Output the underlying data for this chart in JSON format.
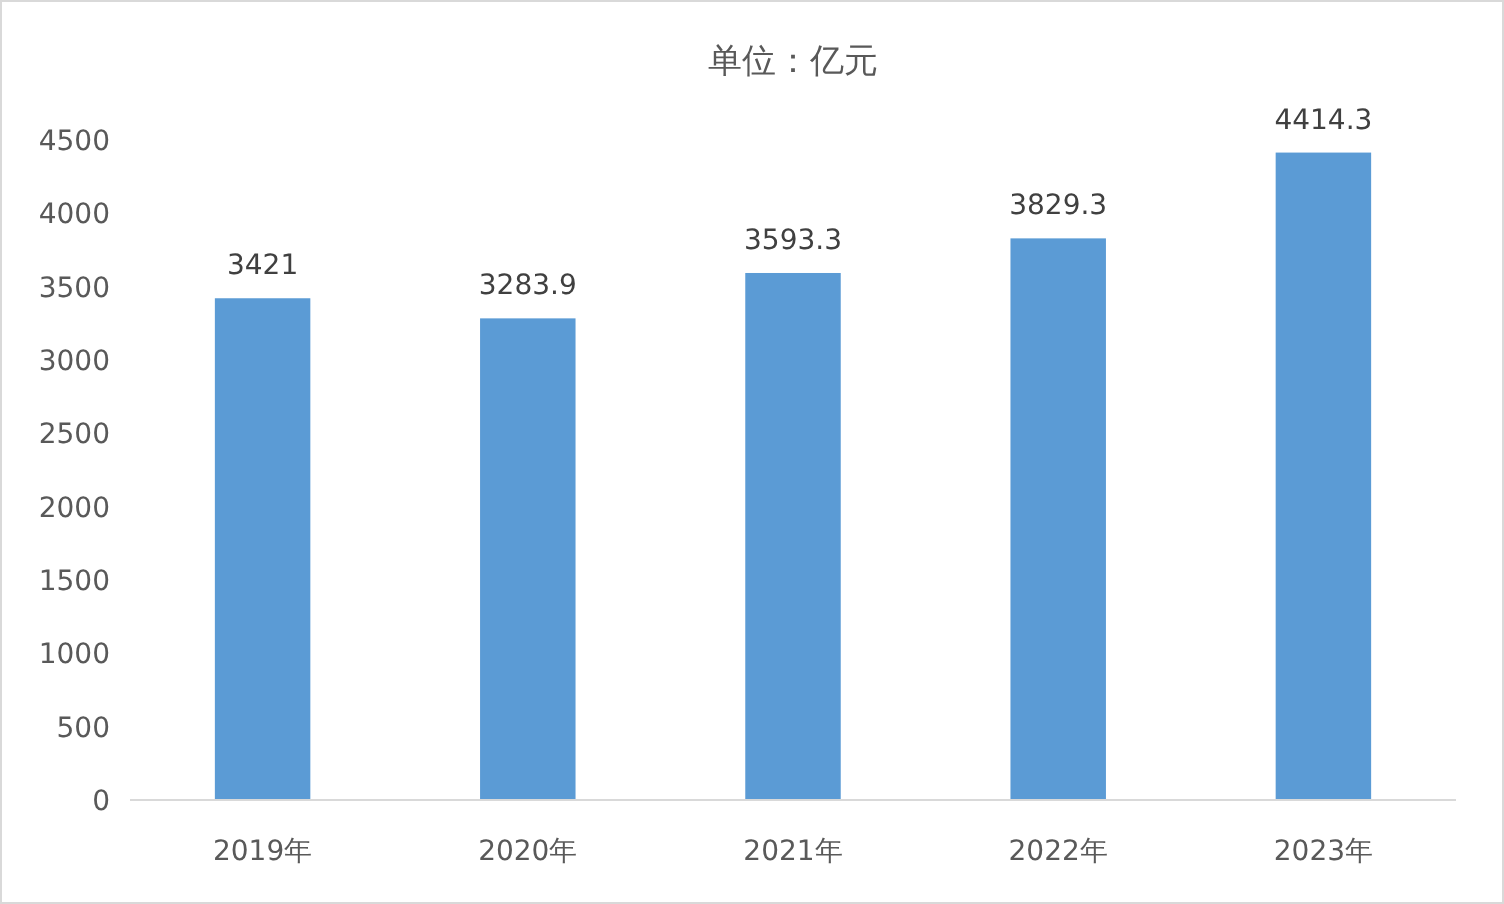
{
  "chart_data": {
    "type": "bar",
    "title": "单位：亿元",
    "categories": [
      "2019年",
      "2020年",
      "2021年",
      "2022年",
      "2023年"
    ],
    "values": [
      3421,
      3283.9,
      3593.3,
      3829.3,
      4414.3
    ],
    "color": "#5b9bd5",
    "data_labels": true,
    "ylim": [
      0,
      4500
    ],
    "yticks": [
      0,
      500,
      1000,
      1500,
      2000,
      2500,
      3000,
      3500,
      4000,
      4500
    ]
  }
}
